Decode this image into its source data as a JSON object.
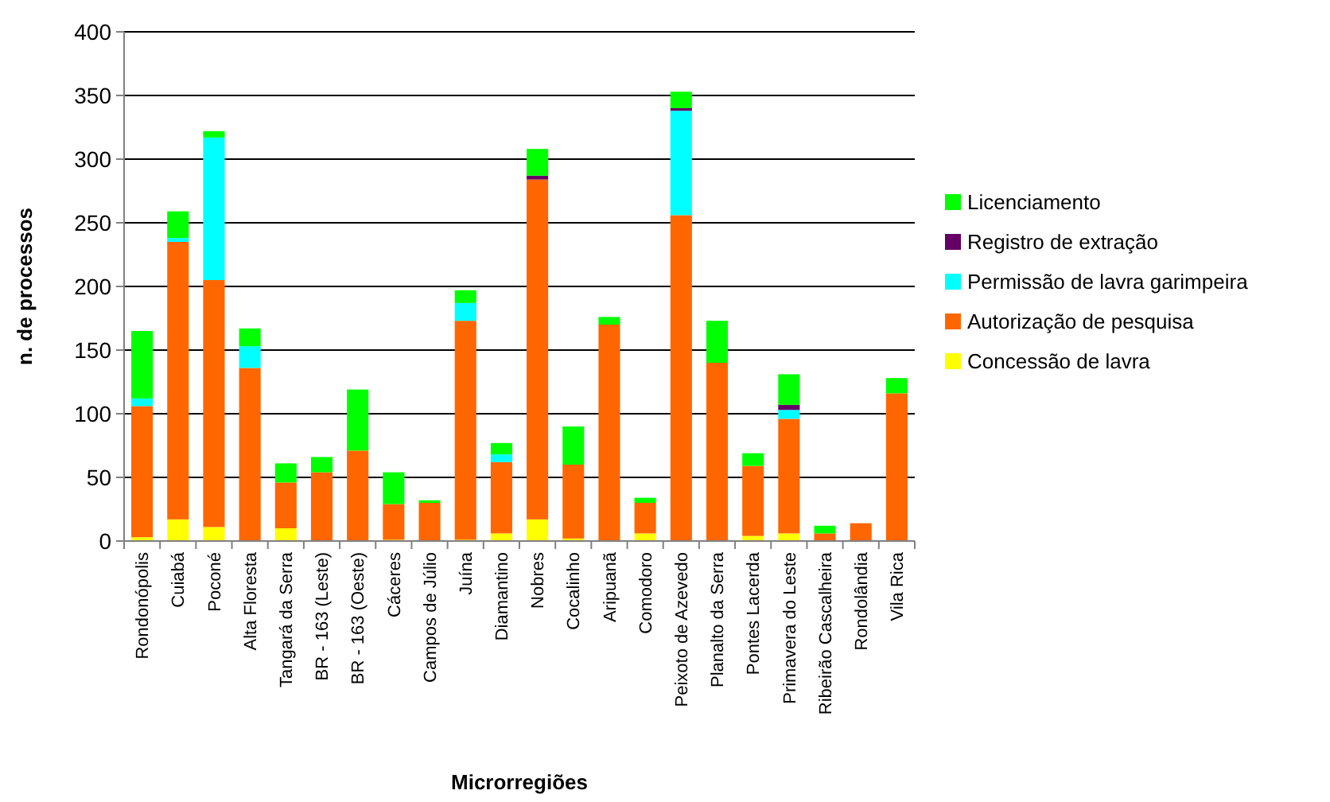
{
  "chart_data": {
    "type": "bar",
    "stacked": true,
    "xlabel": "Microrregiões",
    "ylabel": "n. de processos",
    "categories": [
      "Rondonópolis",
      "Cuiabá",
      "Poconé",
      "Alta Floresta",
      "Tangará da Serra",
      "BR - 163 (Leste)",
      "BR - 163 (Oeste)",
      "Cáceres",
      "Campos de Júlio",
      "Juína",
      "Diamantino",
      "Nobres",
      "Cocalinho",
      "Aripuanã",
      "Comodoro",
      "Peixoto de Azevedo",
      "Planalto da Serra",
      "Pontes Lacerda",
      "Primavera do Leste",
      "Ribeirão Cascalheira",
      "Rondolândia",
      "Vila Rica"
    ],
    "series": [
      {
        "name": "Concessão de lavra",
        "color": "#ffff00",
        "values": [
          3,
          17,
          11,
          0,
          10,
          0,
          0,
          1,
          0,
          1,
          6,
          17,
          2,
          0,
          6,
          0,
          0,
          4,
          6,
          0,
          0,
          0
        ]
      },
      {
        "name": "Autorização de pesquisa",
        "color": "#ff6600",
        "values": [
          103,
          218,
          194,
          136,
          36,
          54,
          71,
          28,
          30,
          172,
          56,
          267,
          58,
          170,
          24,
          256,
          140,
          55,
          90,
          6,
          14,
          116
        ]
      },
      {
        "name": "Permissão de lavra garimpeira",
        "color": "#00ffff",
        "values": [
          6,
          3,
          112,
          17,
          0,
          0,
          0,
          0,
          0,
          14,
          6,
          0,
          0,
          0,
          0,
          82,
          0,
          0,
          7,
          0,
          0,
          0
        ]
      },
      {
        "name": "Registro de extração",
        "color": "#660066",
        "values": [
          0,
          0,
          0,
          0,
          0,
          0,
          0,
          0,
          0,
          0,
          0,
          3,
          0,
          0,
          0,
          2,
          0,
          0,
          4,
          0,
          0,
          0
        ]
      },
      {
        "name": "Licenciamento",
        "color": "#00ff00",
        "values": [
          53,
          21,
          5,
          14,
          15,
          12,
          48,
          25,
          2,
          10,
          9,
          21,
          30,
          6,
          4,
          13,
          33,
          10,
          24,
          6,
          0,
          12
        ]
      }
    ],
    "ylim": [
      0,
      400
    ],
    "yticks": [
      0,
      50,
      100,
      150,
      200,
      250,
      300,
      350,
      400
    ],
    "grid": "y",
    "legend": "right"
  }
}
